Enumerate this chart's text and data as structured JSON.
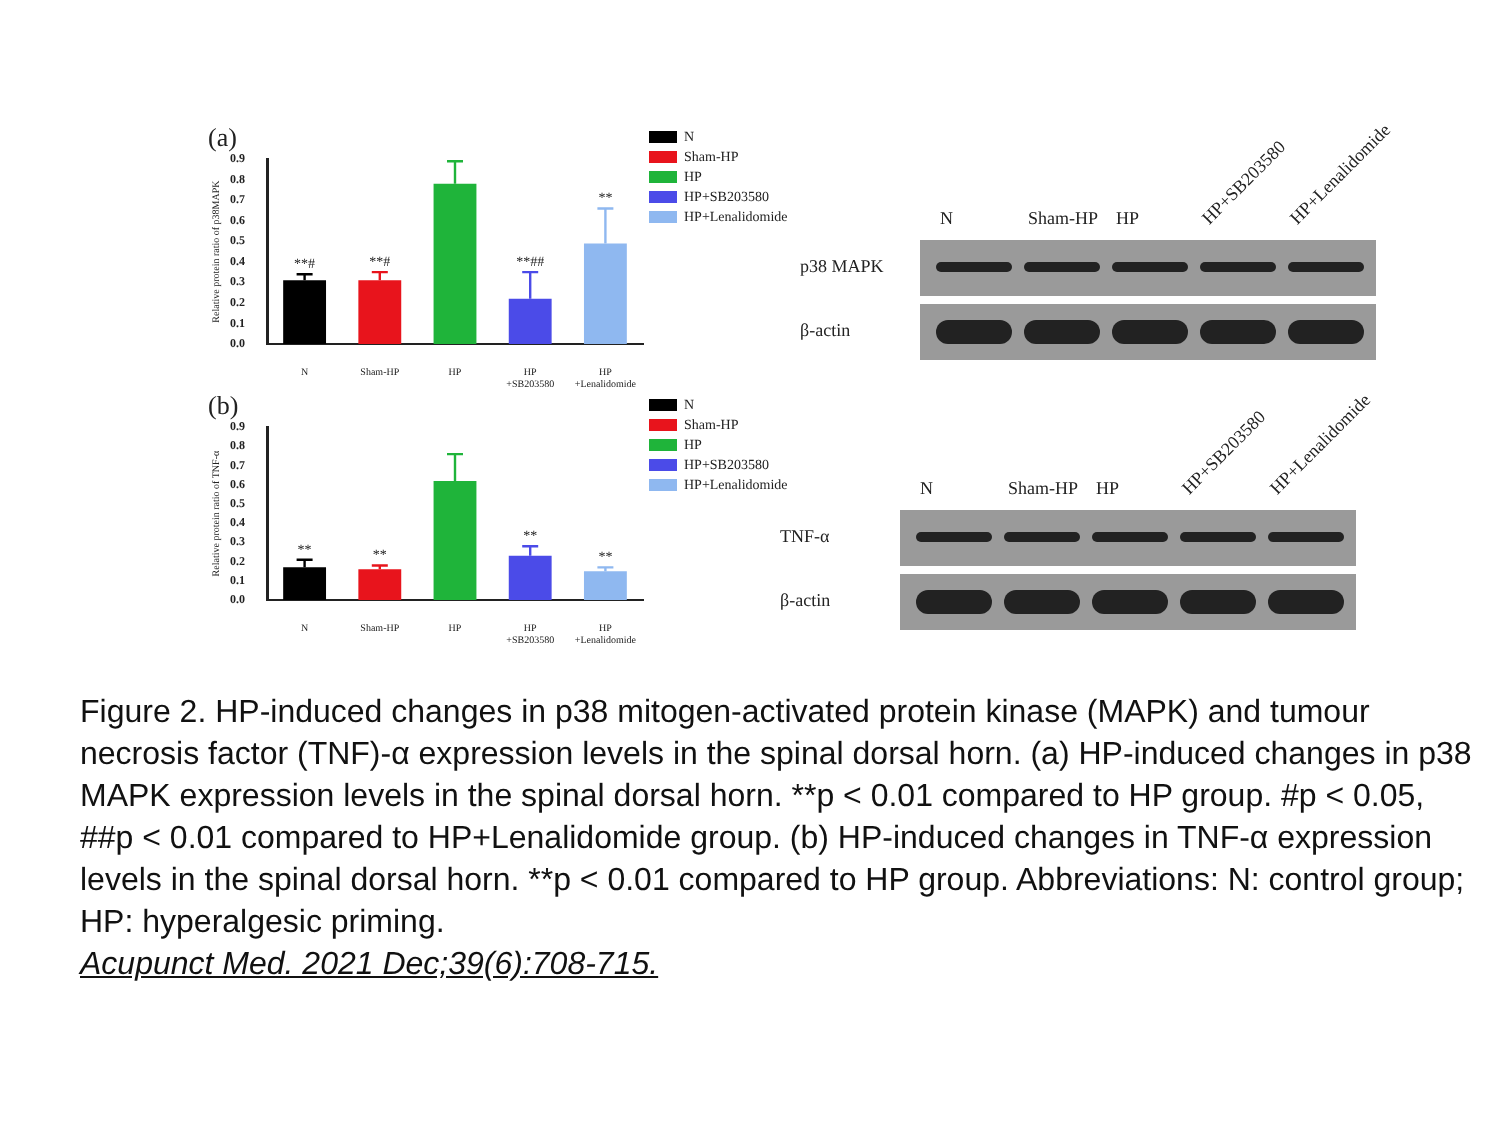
{
  "chart_data": [
    {
      "type": "bar",
      "title": "(a)",
      "ylabel": "Relative protein ratio of p38MAPK",
      "categories": [
        "N",
        "Sham-HP",
        "HP",
        "HP\n+SB203580",
        "HP\n+Lenalidomide"
      ],
      "series": [
        {
          "name": "N",
          "color": "#000000",
          "values": [
            0.31,
            null,
            null,
            null,
            null
          ],
          "errors": [
            0.03,
            null,
            null,
            null,
            null
          ]
        },
        {
          "name": "Sham-HP",
          "color": "#e8141c",
          "values": [
            null,
            0.31,
            null,
            null,
            null
          ],
          "errors": [
            null,
            0.04,
            null,
            null,
            null
          ]
        },
        {
          "name": "HP",
          "color": "#1fb43a",
          "values": [
            null,
            null,
            0.78,
            null,
            null
          ],
          "errors": [
            null,
            null,
            0.11,
            null,
            null
          ]
        },
        {
          "name": "HP+SB203580",
          "color": "#4b4be8",
          "values": [
            null,
            null,
            null,
            0.22,
            null
          ],
          "errors": [
            null,
            null,
            null,
            0.13,
            null
          ]
        },
        {
          "name": "HP+Lenalidomide",
          "color": "#8fb8f0",
          "values": [
            null,
            null,
            null,
            null,
            0.49
          ],
          "errors": [
            null,
            null,
            null,
            null,
            0.17
          ]
        }
      ],
      "ylim": [
        0,
        0.9
      ],
      "yticks": [
        {
          "value": 0,
          "label": "0.0"
        },
        0.1,
        0.2,
        0.3,
        0.4,
        0.5,
        0.6,
        0.7,
        0.8,
        0.9
      ],
      "grid": false,
      "legend": "top right",
      "annotations": [
        {
          "text": "**#",
          "x": "N",
          "y": 0.34
        },
        {
          "text": "**#",
          "x": "Sham-HP",
          "y": 0.35
        },
        {
          "text": "**##",
          "x": "HP\n+SB203580",
          "y": 0.35
        },
        {
          "text": "**",
          "x": "HP\n+Lenalidomide",
          "y": 0.66
        },
        "N",
        "Sham-HP",
        "HP",
        "HP+SB203580",
        "HP+Lenalidomide",
        "p38 MAPK",
        "β-actin"
      ]
    },
    {
      "type": "bar",
      "title": "(b)",
      "ylabel": "Relative protein ratio of TNF-α",
      "categories": [
        "N",
        "Sham-HP",
        "HP",
        "HP\n+SB203580",
        "HP\n+Lenalidomide"
      ],
      "series": [
        {
          "name": "N",
          "color": "#000000",
          "values": [
            0.17,
            null,
            null,
            null,
            null
          ],
          "errors": [
            0.04,
            null,
            null,
            null,
            null
          ]
        },
        {
          "name": "Sham-HP",
          "color": "#e8141c",
          "values": [
            null,
            0.16,
            null,
            null,
            null
          ],
          "errors": [
            null,
            0.02,
            null,
            null,
            null
          ]
        },
        {
          "name": "HP",
          "color": "#1fb43a",
          "values": [
            null,
            null,
            0.62,
            null,
            null
          ],
          "errors": [
            null,
            null,
            0.14,
            null,
            null
          ]
        },
        {
          "name": "HP+SB203580",
          "color": "#4b4be8",
          "values": [
            null,
            null,
            null,
            0.23,
            null
          ],
          "errors": [
            null,
            null,
            null,
            0.05,
            null
          ]
        },
        {
          "name": "HP+Lenalidomide",
          "color": "#8fb8f0",
          "values": [
            null,
            null,
            null,
            null,
            0.15
          ],
          "errors": [
            null,
            null,
            null,
            null,
            0.02
          ]
        }
      ],
      "ylim": [
        0,
        0.9
      ],
      "yticks": [
        {
          "value": 0,
          "label": "0.0"
        },
        0.1,
        0.2,
        0.3,
        0.4,
        0.5,
        0.6,
        0.7,
        0.8,
        0.9
      ],
      "grid": false,
      "legend": "top right",
      "annotations": [
        {
          "text": "**",
          "x": "N",
          "y": 0.21
        },
        {
          "text": "**",
          "x": "Sham-HP",
          "y": 0.18
        },
        {
          "text": "**",
          "x": "HP\n+SB203580",
          "y": 0.28
        },
        {
          "text": "**",
          "x": "HP\n+Lenalidomide",
          "y": 0.17
        },
        "N",
        "Sham-HP",
        "HP",
        "HP+SB203580",
        "HP+Lenalidomide",
        "TNF-α",
        "β-actin"
      ]
    },
    {
      "type": "other",
      "annotations": [
        "Figure 2. HP-induced changes in p38 mitogen-activated protein kinase (MAPK) and tumour necrosis factor (TNF)-α expression levels in the spinal dorsal horn. (a) HP-induced changes in p38 MAPK expression levels in the spinal dorsal horn. **p < 0.01 compared to HP group. #p < 0.05, ##p < 0.01 compared to HP+Lenalidomide group. (b) HP-induced changes in TNF-α expression levels in the spinal dorsal horn. **p < 0.01 compared to HP group. Abbreviations: N: control group; HP: hyperalgesic priming.",
        "Acupunct Med. 2021 Dec;39(6):708-715."
      ]
    }
  ]
}
